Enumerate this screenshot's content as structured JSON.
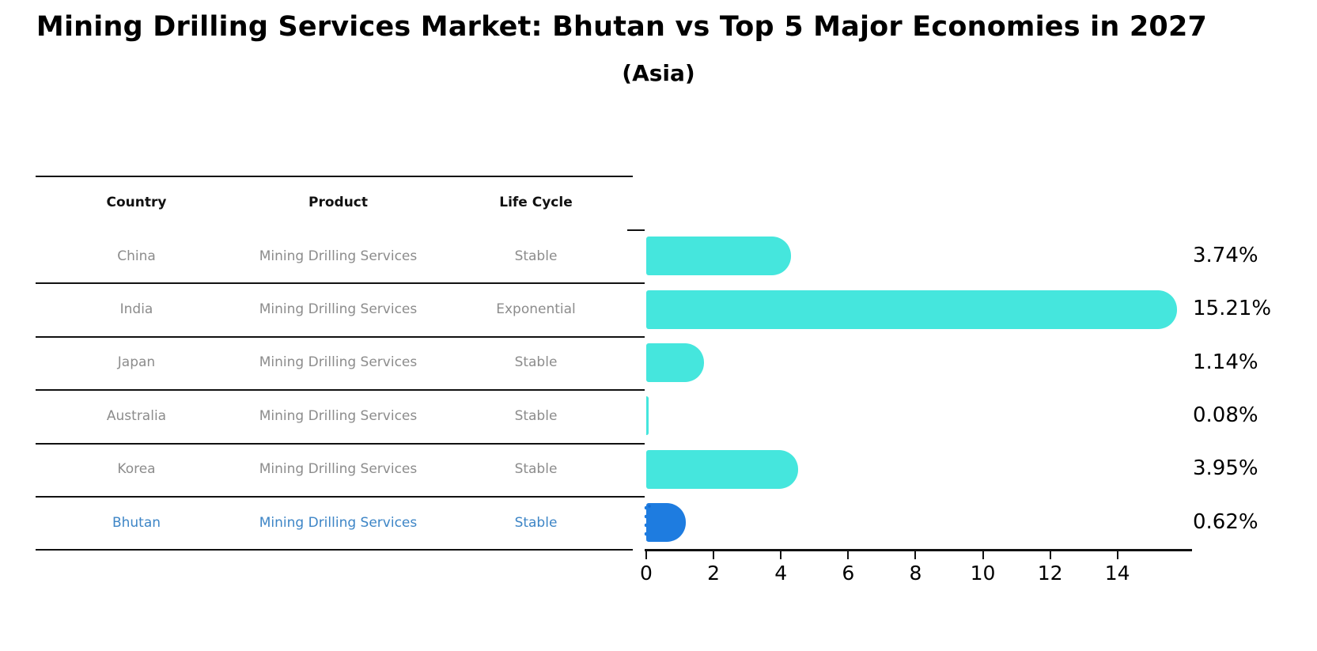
{
  "title": "Mining Drilling Services Market: Bhutan vs Top 5 Major Economies in 2027",
  "subtitle": "(Asia)",
  "table": {
    "headers": [
      "Country",
      "Product",
      "Life Cycle"
    ],
    "rows": [
      {
        "country": "China",
        "product": "Mining Drilling Services",
        "life_cycle": "Stable",
        "highlight": false
      },
      {
        "country": "India",
        "product": "Mining Drilling Services",
        "life_cycle": "Exponential",
        "highlight": false
      },
      {
        "country": "Japan",
        "product": "Mining Drilling Services",
        "life_cycle": "Stable",
        "highlight": false
      },
      {
        "country": "Australia",
        "product": "Mining Drilling Services",
        "life_cycle": "Stable",
        "highlight": false
      },
      {
        "country": "Korea",
        "product": "Mining Drilling Services",
        "life_cycle": "Stable",
        "highlight": true,
        "_note": ""
      },
      {
        "country": "Bhutan",
        "product": "Mining Drilling Services",
        "life_cycle": "Stable",
        "highlight": true
      }
    ]
  },
  "chart_data": {
    "type": "bar",
    "orientation": "horizontal",
    "title": "Mining Drilling Services Market: Bhutan vs Top 5 Major Economies in 2027 (Asia)",
    "categories": [
      "China",
      "India",
      "Japan",
      "Australia",
      "Korea",
      "Bhutan"
    ],
    "values": [
      3.74,
      15.21,
      1.14,
      0.08,
      3.95,
      0.62
    ],
    "value_labels": [
      "3.74%",
      "15.21%",
      "1.14%",
      "0.08%",
      "3.95%",
      "0.62%"
    ],
    "highlight_index": 5,
    "x_ticks": [
      0,
      2,
      4,
      6,
      8,
      10,
      12,
      14
    ],
    "xlim": [
      0,
      16.2
    ],
    "grid": false,
    "legend": null
  },
  "colors": {
    "bar_default": "#45e6dd",
    "bar_highlight": "#1e7ce0",
    "highlight_row_text": "#3d85c6",
    "row_text": "#8c8c8c",
    "header_text": "#111111",
    "axis": "#111111",
    "value_label_text": "#000000"
  }
}
